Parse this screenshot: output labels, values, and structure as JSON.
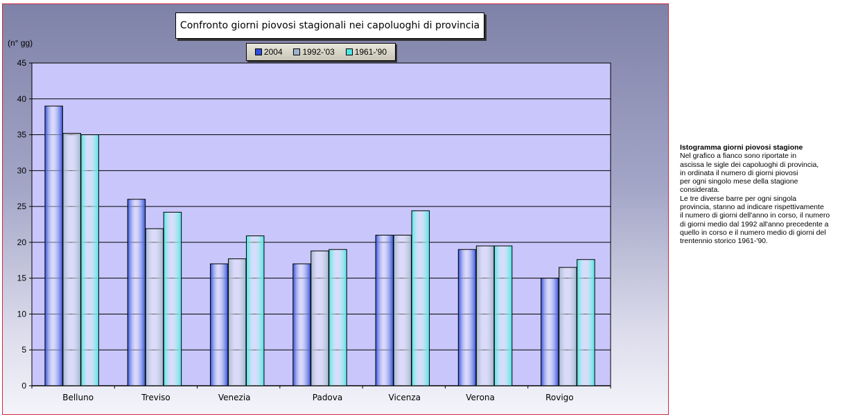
{
  "chart_data": {
    "type": "bar",
    "title": "Confronto giorni piovosi stagionali nei capoluoghi di provincia",
    "ylabel": "(n° gg)",
    "xlabel": "",
    "ylim": [
      0,
      45
    ],
    "yticks": [
      0,
      5,
      10,
      15,
      20,
      25,
      30,
      35,
      40,
      45
    ],
    "grid": true,
    "legend_position": "top-center",
    "categories": [
      "Belluno",
      "Treviso",
      "Venezia",
      "Padova",
      "Vicenza",
      "Verona",
      "Rovigo"
    ],
    "series": [
      {
        "name": "2004",
        "color": "#2f4fd9",
        "values": [
          39,
          26,
          17,
          17,
          21,
          19,
          15
        ]
      },
      {
        "name": "1992-'03",
        "color": "#9fb2cc",
        "values": [
          35.2,
          21.9,
          17.7,
          18.8,
          21,
          19.5,
          16.5
        ]
      },
      {
        "name": "1961-'90",
        "color": "#4fe3e3",
        "values": [
          35,
          24.2,
          20.9,
          19,
          24.4,
          19.5,
          17.6
        ]
      }
    ]
  },
  "description": {
    "title": "Istogramma giorni piovosi stagione",
    "lines": [
      "Nel grafico a fianco sono riportate in",
      "ascissa le sigle dei capoluoghi di provincia,",
      "in ordinata il numero di giorni piovosi",
      "per ogni singolo mese della stagione",
      "considerata.",
      "Le tre diverse barre per ogni singola",
      "provincia, stanno ad indicare rispettivamente",
      "il numero di giorni dell'anno in corso, il numero",
      "di giorni medio dal 1992 all'anno precedente a",
      "quello in corso e il numero medio di giorni  del",
      "trentennio storico 1961-'90."
    ]
  }
}
